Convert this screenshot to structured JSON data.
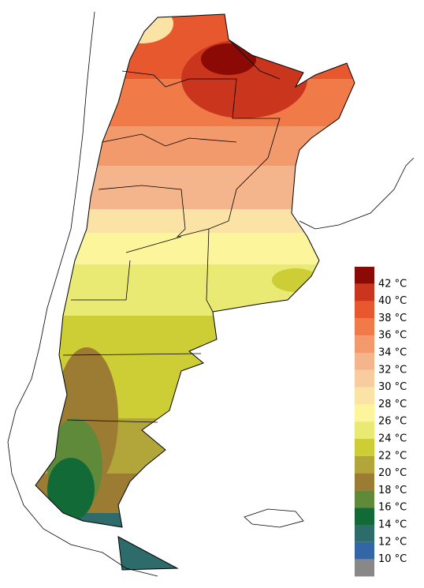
{
  "legend": {
    "labels": [
      "42 °C",
      "40 °C",
      "38 °C",
      "36 °C",
      "34 °C",
      "32 °C",
      "30 °C",
      "28 °C",
      "26 °C",
      "24 °C",
      "22 °C",
      "20 °C",
      "18 °C",
      "16 °C",
      "14 °C",
      "12 °C",
      "10 °C"
    ],
    "colors": [
      "#8b0a05",
      "#c9351d",
      "#e8582e",
      "#f07a48",
      "#f39a6c",
      "#f5b58c",
      "#f8cc9e",
      "#fbe3a6",
      "#fdf59c",
      "#e9ea74",
      "#cdcd36",
      "#b2a63a",
      "#9c7c33",
      "#5f8a3a",
      "#126a36",
      "#2e6b6b",
      "#3366a6",
      "#888888"
    ]
  }
}
